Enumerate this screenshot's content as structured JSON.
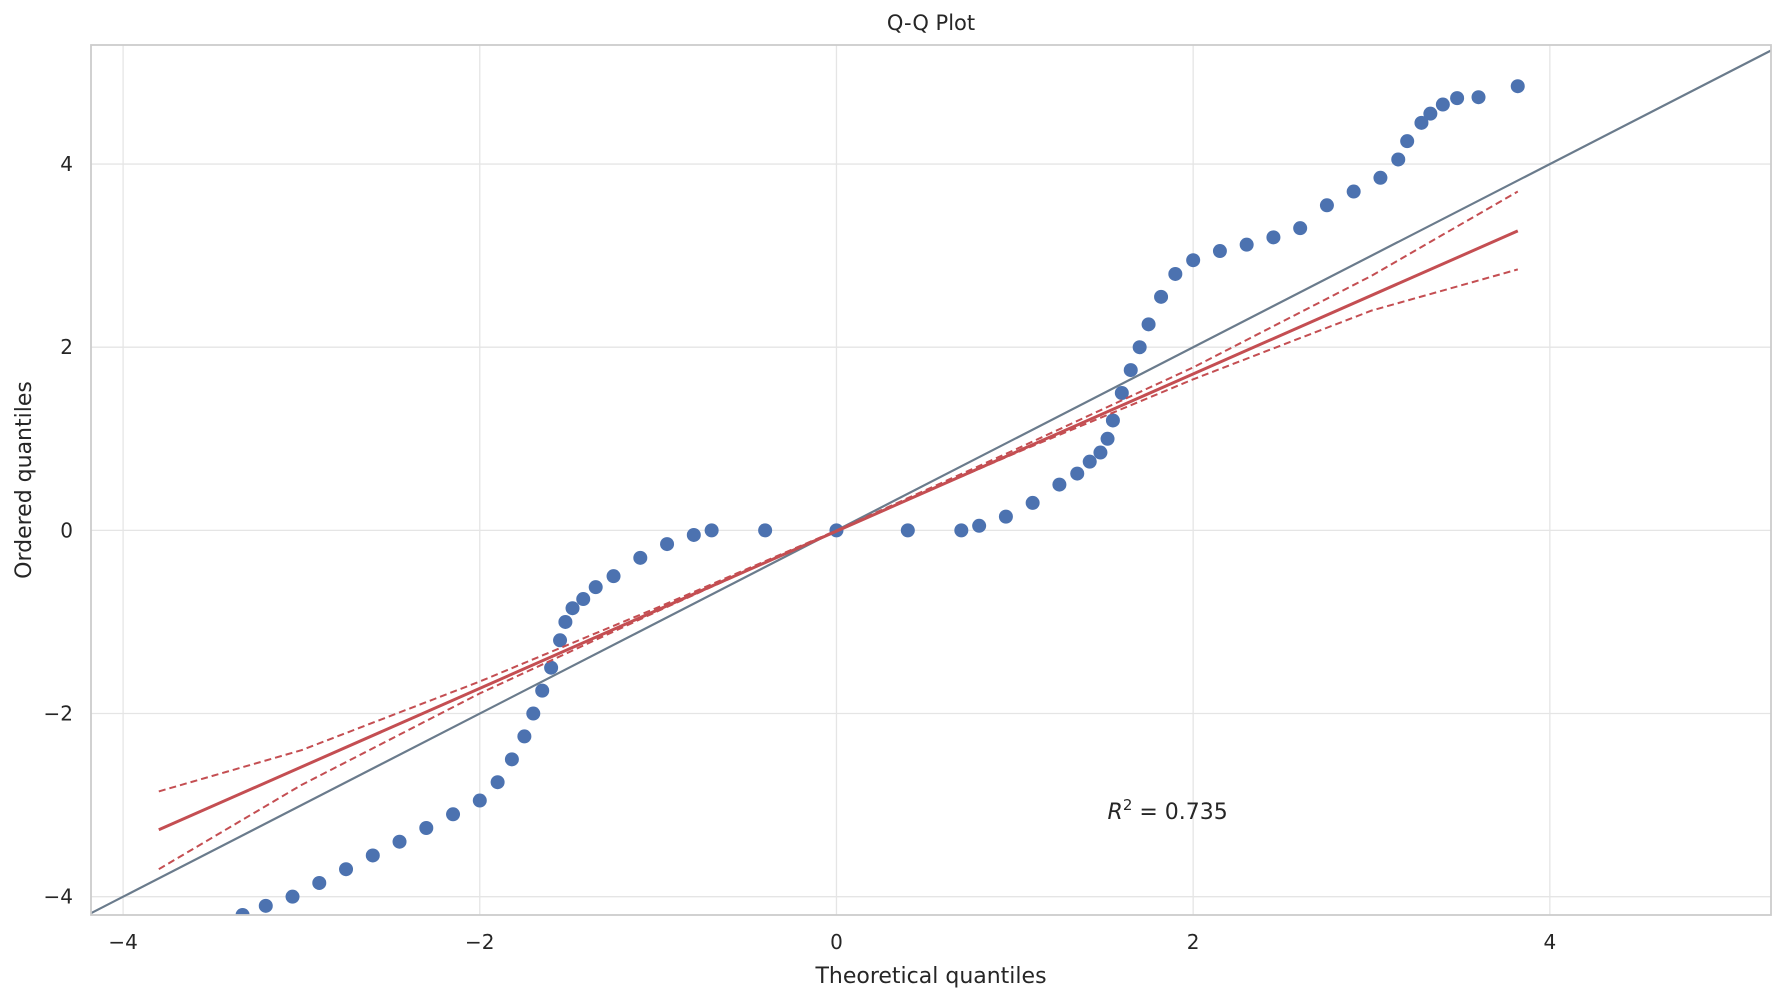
{
  "chart_data": {
    "type": "scatter",
    "title": "Q-Q Plot",
    "xlabel": "Theoretical quantiles",
    "ylabel": "Ordered quantiles",
    "xlim": [
      -4.18,
      5.24
    ],
    "ylim": [
      -4.2,
      5.3
    ],
    "xticks": [
      -4,
      -2,
      0,
      2,
      4
    ],
    "yticks": [
      -4,
      -2,
      0,
      2,
      4
    ],
    "xtick_labels": [
      "−4",
      "−2",
      "0",
      "2",
      "4"
    ],
    "ytick_labels": [
      "−4",
      "−2",
      "0",
      "2",
      "4"
    ],
    "grid": true,
    "annotation": "R^2 = 0.735",
    "annotation_position_data": [
      1.52,
      -3.15
    ],
    "colors": {
      "points": "#4c72b0",
      "fit_line": "#c44e52",
      "reference_line": "#6a7b8c",
      "grid": "#e5e5e5",
      "axes_border": "#cccccc",
      "text": "#262626"
    },
    "series": [
      {
        "kind": "points",
        "x": [
          -3.33,
          -3.2,
          -3.05,
          -2.9,
          -2.75,
          -2.6,
          -2.45,
          -2.3,
          -2.15,
          -2.0,
          -1.9,
          -1.82,
          -1.75,
          -1.7,
          -1.65,
          -1.6,
          -1.55,
          -1.52,
          -1.48,
          -1.42,
          -1.35,
          -1.25,
          -1.1,
          -0.95,
          -0.8,
          -0.7,
          -0.4,
          0.0,
          0.4,
          0.7,
          0.8,
          0.95,
          1.1,
          1.25,
          1.35,
          1.42,
          1.48,
          1.52,
          1.55,
          1.6,
          1.65,
          1.7,
          1.75,
          1.82,
          1.9,
          2.0,
          2.15,
          2.3,
          2.45,
          2.6,
          2.75,
          2.9,
          3.05,
          3.15,
          3.2,
          3.28,
          3.33,
          3.4,
          3.48,
          3.6,
          3.82
        ],
        "y": [
          -4.2,
          -4.1,
          -4.0,
          -3.85,
          -3.7,
          -3.55,
          -3.4,
          -3.25,
          -3.1,
          -2.95,
          -2.75,
          -2.5,
          -2.25,
          -2.0,
          -1.75,
          -1.5,
          -1.2,
          -1.0,
          -0.85,
          -0.75,
          -0.62,
          -0.5,
          -0.3,
          -0.15,
          -0.05,
          0.0,
          0.0,
          0.0,
          0.0,
          0.0,
          0.05,
          0.15,
          0.3,
          0.5,
          0.62,
          0.75,
          0.85,
          1.0,
          1.2,
          1.5,
          1.75,
          2.0,
          2.25,
          2.55,
          2.8,
          2.95,
          3.05,
          3.12,
          3.2,
          3.3,
          3.55,
          3.7,
          3.85,
          4.05,
          4.25,
          4.45,
          4.55,
          4.65,
          4.72,
          4.73,
          4.85
        ]
      },
      {
        "kind": "fit_line",
        "x": [
          -3.8,
          3.82
        ],
        "y": [
          -3.27,
          3.27
        ]
      },
      {
        "kind": "confidence_band_upper",
        "x": [
          -3.8,
          -3.0,
          -2.0,
          -1.0,
          0.0,
          1.0,
          2.0,
          3.0,
          3.82
        ],
        "y": [
          -2.85,
          -2.4,
          -1.65,
          -0.84,
          0.0,
          0.88,
          1.78,
          2.78,
          3.7
        ]
      },
      {
        "kind": "confidence_band_lower",
        "x": [
          -3.8,
          -3.0,
          -2.0,
          -1.0,
          0.0,
          1.0,
          2.0,
          3.0,
          3.82
        ],
        "y": [
          -3.7,
          -2.78,
          -1.78,
          -0.88,
          0.0,
          0.84,
          1.65,
          2.4,
          2.85
        ]
      },
      {
        "kind": "reference_line",
        "x": [
          -4.18,
          5.24
        ],
        "y": [
          -4.18,
          5.24
        ]
      }
    ]
  }
}
